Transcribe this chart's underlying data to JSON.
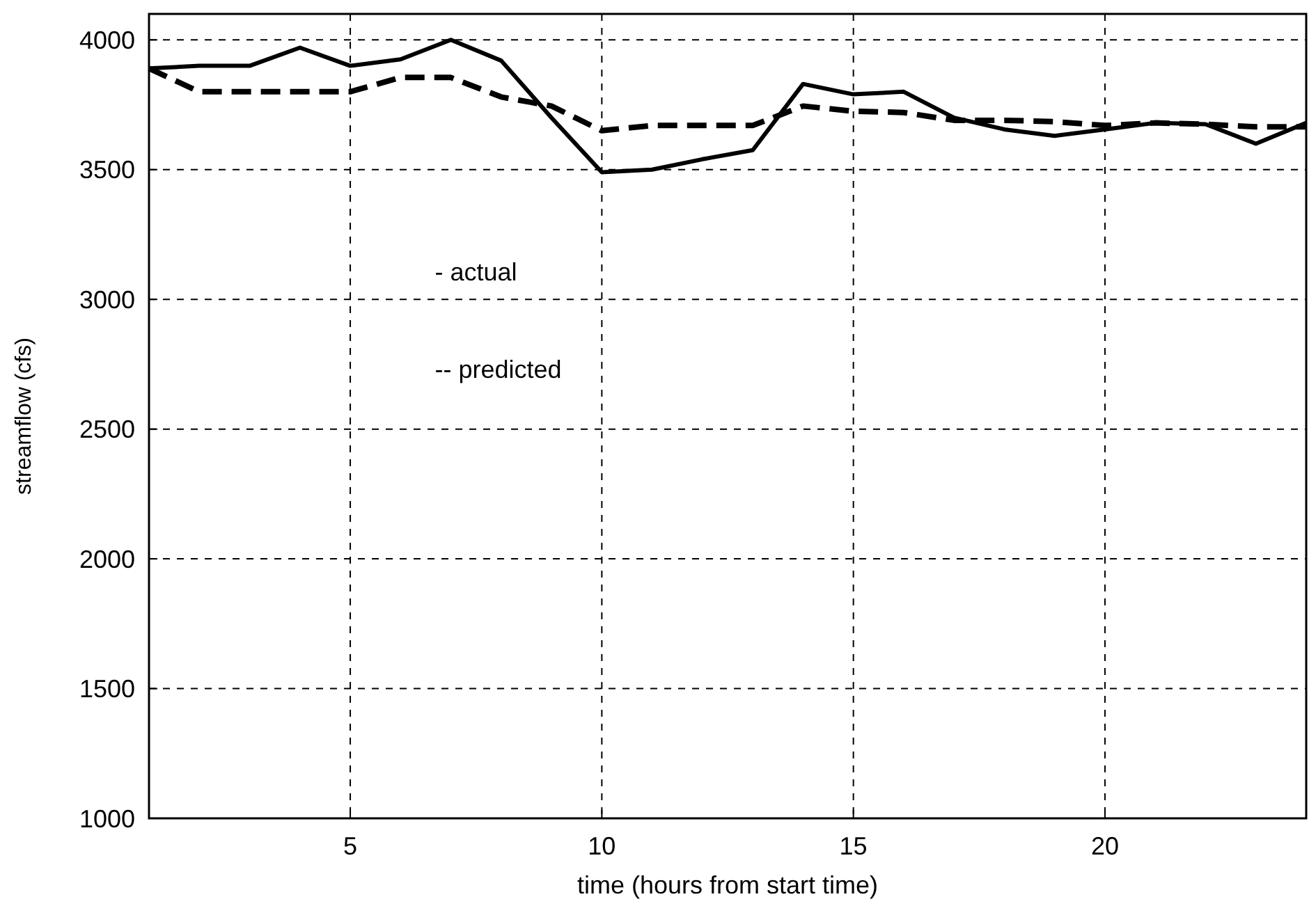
{
  "chart_data": {
    "type": "line",
    "xlabel": "time (hours from start time)",
    "ylabel": "streamflow (cfs)",
    "x": [
      1,
      2,
      3,
      4,
      5,
      6,
      7,
      8,
      9,
      10,
      11,
      12,
      13,
      14,
      15,
      16,
      17,
      18,
      19,
      20,
      21,
      22,
      23,
      24
    ],
    "series": [
      {
        "color": "#000000",
        "line_style": "solid",
        "values": [
          3890,
          3900,
          3900,
          3970,
          3900,
          3925,
          4000,
          3920,
          3700,
          3490,
          3500,
          3540,
          3575,
          3830,
          3790,
          3800,
          3700,
          3655,
          3630,
          3655,
          3680,
          3675,
          3600,
          3680
        ]
      },
      {
        "color": "#000000",
        "line_style": "dashed",
        "values": [
          3890,
          3800,
          3800,
          3800,
          3800,
          3855,
          3855,
          3780,
          3745,
          3650,
          3670,
          3670,
          3670,
          3745,
          3725,
          3720,
          3690,
          3690,
          3685,
          3670,
          3680,
          3675,
          3665,
          3665
        ]
      }
    ],
    "xlim": [
      1,
      24
    ],
    "ylim": [
      1000,
      4100
    ],
    "xticks": [
      5,
      10,
      15,
      20
    ],
    "yticks": [
      1000,
      1500,
      2000,
      2500,
      3000,
      3500,
      4000
    ],
    "grid": true,
    "marker": "none",
    "annotations": [
      "- actual",
      "-- predicted"
    ]
  }
}
